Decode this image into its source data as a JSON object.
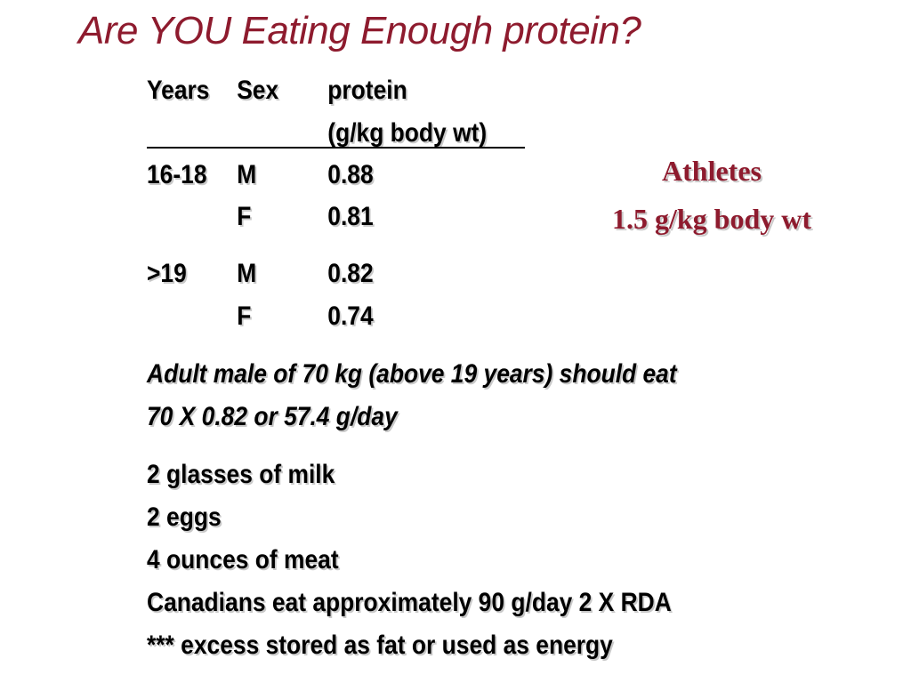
{
  "title": "Are YOU Eating Enough protein?",
  "table": {
    "headers": {
      "years": "Years",
      "sex": "Sex",
      "protein": "protein",
      "unit": "(g/kg body wt)"
    },
    "rows": [
      {
        "years": "16-18",
        "sex": "M",
        "value": "0.88"
      },
      {
        "years": "",
        "sex": "F",
        "value": "0.81"
      },
      {
        "years": ">19",
        "sex": "M",
        "value": "0.82"
      },
      {
        "years": "",
        "sex": "F",
        "value": "0.74"
      }
    ]
  },
  "athletes": {
    "label": "Athletes",
    "value": "1.5 g/kg body wt"
  },
  "example": {
    "line1": "Adult male of 70 kg (above 19 years) should eat",
    "line2": "70 X 0.82 or 57.4 g/day"
  },
  "foods": [
    "2 glasses of milk",
    "2 eggs",
    "4 ounces of meat",
    "Canadians eat approximately 90 g/day 2 X RDA",
    "*** excess stored as fat or used as energy"
  ]
}
